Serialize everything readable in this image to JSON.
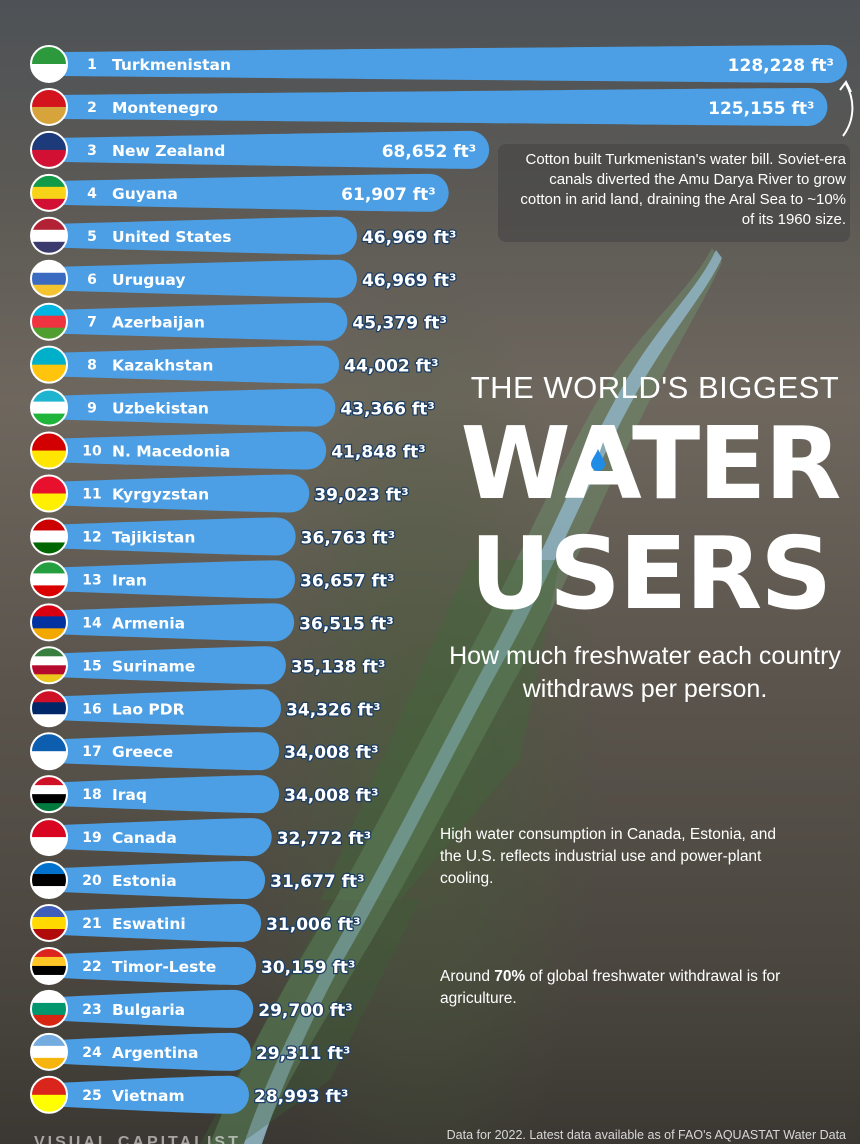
{
  "chart_data": {
    "type": "bar",
    "orientation": "horizontal",
    "title": "THE WORLD'S BIGGEST WATER USERS",
    "title_parts": {
      "line1": "THE WORLD'S BIGGEST",
      "word1": "WATER",
      "word2": "USERS"
    },
    "subtitle": "How much freshwater each country withdraws per person.",
    "unit": "ft³",
    "ranks": [
      1,
      2,
      3,
      4,
      5,
      6,
      7,
      8,
      9,
      10,
      11,
      12,
      13,
      14,
      15,
      16,
      17,
      18,
      19,
      20,
      21,
      22,
      23,
      24,
      25
    ],
    "categories": [
      "Turkmenistan",
      "Montenegro",
      "New Zealand",
      "Guyana",
      "United States",
      "Uruguay",
      "Azerbaijan",
      "Kazakhstan",
      "Uzbekistan",
      "N. Macedonia",
      "Kyrgyzstan",
      "Tajikistan",
      "Iran",
      "Armenia",
      "Suriname",
      "Lao PDR",
      "Greece",
      "Iraq",
      "Canada",
      "Estonia",
      "Eswatini",
      "Timor-Leste",
      "Bulgaria",
      "Argentina",
      "Vietnam"
    ],
    "values": [
      128228,
      125155,
      68652,
      61907,
      46969,
      46969,
      45379,
      44002,
      43366,
      41848,
      39023,
      36763,
      36657,
      36515,
      35138,
      34326,
      34008,
      34008,
      32772,
      31677,
      31006,
      30159,
      29700,
      29311,
      28993
    ],
    "value_labels": [
      "128,228 ft³",
      "125,155 ft³",
      "68,652 ft³",
      "61,907 ft³",
      "46,969 ft³",
      "46,969 ft³",
      "45,379 ft³",
      "44,002 ft³",
      "43,366 ft³",
      "41,848 ft³",
      "39,023 ft³",
      "36,763 ft³",
      "36,657 ft³",
      "36,515 ft³",
      "35,138 ft³",
      "34,326 ft³",
      "34,008 ft³",
      "34,008 ft³",
      "32,772 ft³",
      "31,677 ft³",
      "31,006 ft³",
      "30,159 ft³",
      "29,700 ft³",
      "29,311 ft³",
      "28,993 ft³"
    ],
    "xlim": [
      0,
      128228
    ],
    "grid": false,
    "legend": "none"
  },
  "flags": [
    {
      "country": "Turkmenistan",
      "icon": "turkmenistan-flag-icon",
      "colors": [
        "#2c9a3c",
        "#ffffff"
      ]
    },
    {
      "country": "Montenegro",
      "icon": "montenegro-flag-icon",
      "colors": [
        "#d3141c",
        "#d6a43a"
      ]
    },
    {
      "country": "New Zealand",
      "icon": "new-zealand-flag-icon",
      "colors": [
        "#1d3a7a",
        "#d21034"
      ]
    },
    {
      "country": "Guyana",
      "icon": "guyana-flag-icon",
      "colors": [
        "#119b48",
        "#f7d417",
        "#d21034"
      ]
    },
    {
      "country": "United States",
      "icon": "united-states-flag-icon",
      "colors": [
        "#b22234",
        "#ffffff",
        "#3c3b6e"
      ]
    },
    {
      "country": "Uruguay",
      "icon": "uruguay-flag-icon",
      "colors": [
        "#ffffff",
        "#3a6bc0",
        "#f4c430"
      ]
    },
    {
      "country": "Azerbaijan",
      "icon": "azerbaijan-flag-icon",
      "colors": [
        "#00b5e2",
        "#ef3340",
        "#509e2f"
      ]
    },
    {
      "country": "Kazakhstan",
      "icon": "kazakhstan-flag-icon",
      "colors": [
        "#00afca",
        "#fec50c"
      ]
    },
    {
      "country": "Uzbekistan",
      "icon": "uzbekistan-flag-icon",
      "colors": [
        "#1eb4d0",
        "#ffffff",
        "#1eb53a"
      ]
    },
    {
      "country": "N. Macedonia",
      "icon": "north-macedonia-flag-icon",
      "colors": [
        "#d20000",
        "#ffe600"
      ]
    },
    {
      "country": "Kyrgyzstan",
      "icon": "kyrgyzstan-flag-icon",
      "colors": [
        "#e8112d",
        "#ffef00"
      ]
    },
    {
      "country": "Tajikistan",
      "icon": "tajikistan-flag-icon",
      "colors": [
        "#cc0000",
        "#ffffff",
        "#006600"
      ]
    },
    {
      "country": "Iran",
      "icon": "iran-flag-icon",
      "colors": [
        "#239f40",
        "#ffffff",
        "#da0000"
      ]
    },
    {
      "country": "Armenia",
      "icon": "armenia-flag-icon",
      "colors": [
        "#d90012",
        "#0033a0",
        "#f2a800"
      ]
    },
    {
      "country": "Suriname",
      "icon": "suriname-flag-icon",
      "colors": [
        "#377e3f",
        "#ffffff",
        "#b40a2d",
        "#ecc81d"
      ]
    },
    {
      "country": "Lao PDR",
      "icon": "laos-flag-icon",
      "colors": [
        "#ce1126",
        "#002868",
        "#ffffff"
      ]
    },
    {
      "country": "Greece",
      "icon": "greece-flag-icon",
      "colors": [
        "#0d5eaf",
        "#ffffff"
      ]
    },
    {
      "country": "Iraq",
      "icon": "iraq-flag-icon",
      "colors": [
        "#ce1126",
        "#ffffff",
        "#000000",
        "#007a3d"
      ]
    },
    {
      "country": "Canada",
      "icon": "canada-flag-icon",
      "colors": [
        "#d80621",
        "#ffffff"
      ]
    },
    {
      "country": "Estonia",
      "icon": "estonia-flag-icon",
      "colors": [
        "#0072ce",
        "#000000",
        "#ffffff"
      ]
    },
    {
      "country": "Eswatini",
      "icon": "eswatini-flag-icon",
      "colors": [
        "#3e5eb9",
        "#ffd900",
        "#b10c0c"
      ]
    },
    {
      "country": "Timor-Leste",
      "icon": "timor-leste-flag-icon",
      "colors": [
        "#dc241f",
        "#ffc726",
        "#000000",
        "#ffffff"
      ]
    },
    {
      "country": "Bulgaria",
      "icon": "bulgaria-flag-icon",
      "colors": [
        "#ffffff",
        "#00966e",
        "#d62612"
      ]
    },
    {
      "country": "Argentina",
      "icon": "argentina-flag-icon",
      "colors": [
        "#74acdf",
        "#ffffff",
        "#f6b40e"
      ]
    },
    {
      "country": "Vietnam",
      "icon": "vietnam-flag-icon",
      "colors": [
        "#da251d",
        "#ffff00"
      ]
    }
  ],
  "colors": {
    "bar": "#4c9fe4",
    "bar_shadow": "#2f6fae"
  },
  "note_turkmenistan": "Cotton built Turkmenistan's water bill. Soviet-era canals diverted the Amu Darya River to grow cotton in arid land, draining the Aral Sea to ~10% of its 1960 size.",
  "annotation_industrial": "High water consumption in Canada, Estonia, and the U.S. reflects industrial use and power-plant cooling.",
  "annotation_agriculture": {
    "pre": "Around ",
    "strong": "70%",
    "post": " of global freshwater withdrawal is for agriculture."
  },
  "footer_source": "Data for 2022. Latest data available as of FAO's AQUASTAT Water Data",
  "brand": "VISUAL CAPITALIST"
}
